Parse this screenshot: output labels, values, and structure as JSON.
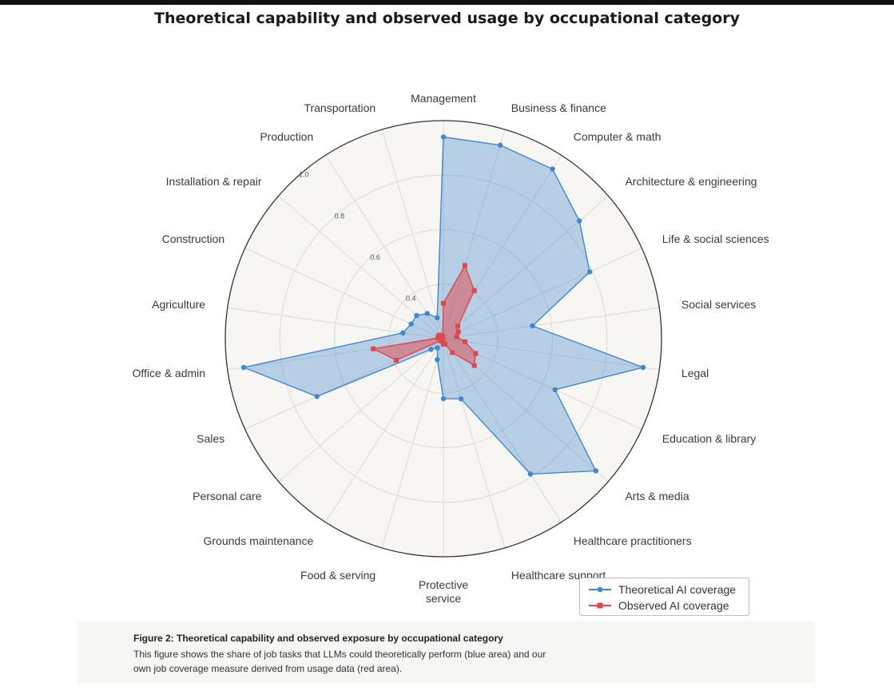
{
  "page": {
    "title": "Theoretical capability and observed usage by occupational category"
  },
  "caption": {
    "title": "Figure 2: Theoretical capability and observed exposure by occupational category",
    "body": "This figure shows the share of job tasks that LLMs could theoretically perform (blue area) and our own job coverage measure derived from usage data (red area)."
  },
  "chart_data": {
    "type": "radar",
    "title": "Theoretical capability and observed usage by occupational category",
    "categories": [
      "Management",
      "Business & finance",
      "Computer & math",
      "Architecture & engineering",
      "Life & social sciences",
      "Social services",
      "Legal",
      "Education & library",
      "Arts & media",
      "Healthcare practitioners",
      "Healthcare support",
      "Protective service",
      "Food & serving",
      "Grounds maintenance",
      "Personal care",
      "Sales",
      "Office & admin",
      "Agriculture",
      "Construction",
      "Installation & repair",
      "Production",
      "Transportation"
    ],
    "label_lines": [
      [
        "Management"
      ],
      [
        "Business & finance"
      ],
      [
        "Computer & math"
      ],
      [
        "Architecture & engineering"
      ],
      [
        "Life & social sciences"
      ],
      [
        "Social services"
      ],
      [
        "Legal"
      ],
      [
        "Education & library"
      ],
      [
        "Arts & media"
      ],
      [
        "Healthcare practitioners"
      ],
      [
        "Healthcare support"
      ],
      [
        "Protective",
        "service"
      ],
      [
        "Food & serving"
      ],
      [
        "Grounds maintenance"
      ],
      [
        "Personal care"
      ],
      [
        "Sales"
      ],
      [
        "Office & admin"
      ],
      [
        "Agriculture"
      ],
      [
        "Construction"
      ],
      [
        "Installation & repair"
      ],
      [
        "Production"
      ],
      [
        "Transportation"
      ]
    ],
    "radial_ticks": [
      "0.4",
      "0.6",
      "0.8",
      "1.0"
    ],
    "radial_tick_values": [
      0.4,
      0.6,
      0.8,
      1.0
    ],
    "rlim": [
      0.2,
      1.0
    ],
    "grid": true,
    "legend_position": "bottom-right",
    "series": [
      {
        "name": "Theoretical AI coverage",
        "color": "#3f88cf",
        "values": [
          0.94,
          0.94,
          0.94,
          0.86,
          0.79,
          0.53,
          0.94,
          0.65,
          0.94,
          0.79,
          0.43,
          0.42,
          0.28,
          0.24,
          0.26,
          0.71,
          0.94,
          0.35,
          0.33,
          0.33,
          0.31,
          0.28
        ]
      },
      {
        "name": "Observed AI coverage",
        "color": "#e0474c",
        "values": [
          0.33,
          0.48,
          0.41,
          0.27,
          0.26,
          0.25,
          0.28,
          0.33,
          0.35,
          0.26,
          0.22,
          0.22,
          0.21,
          0.21,
          0.21,
          0.39,
          0.46,
          0.22,
          0.22,
          0.22,
          0.21,
          0.21
        ]
      }
    ]
  }
}
